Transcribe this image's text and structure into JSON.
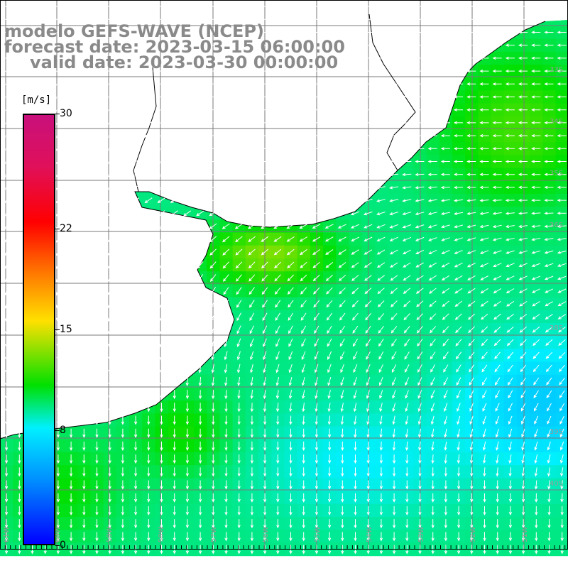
{
  "title": {
    "line1": "modelo GEFS-WAVE (NCEP)",
    "line2": "forecast date: 2023-03-15 06:00:00",
    "line3": "valid date: 2023-03-30 00:00:00"
  },
  "colorbar": {
    "unit": "[m/s]",
    "ticks": [
      "30",
      "22",
      "15",
      "8",
      "0"
    ],
    "tick_values": [
      30,
      22,
      15,
      8,
      0
    ],
    "min": 0,
    "max": 30,
    "colors": [
      "#0000ff",
      "#0090ff",
      "#00f0ff",
      "#00e000",
      "#ffe000",
      "#ff7a00",
      "#ff0000",
      "#e0105a",
      "#c8107c"
    ]
  },
  "map": {
    "land_color": "#ffffff",
    "grid_color": "#7a7a7a",
    "coast_color": "#000000",
    "arrow_color": "#ffffff",
    "lat_labels": [
      "33S",
      "34S",
      "35S",
      "36S",
      "38S",
      "39S",
      "40S"
    ],
    "lon_labels": [
      "61W",
      "60W",
      "59W",
      "58W",
      "57W",
      "56W",
      "55W",
      "54W",
      "53W",
      "52W",
      "51W"
    ]
  }
}
